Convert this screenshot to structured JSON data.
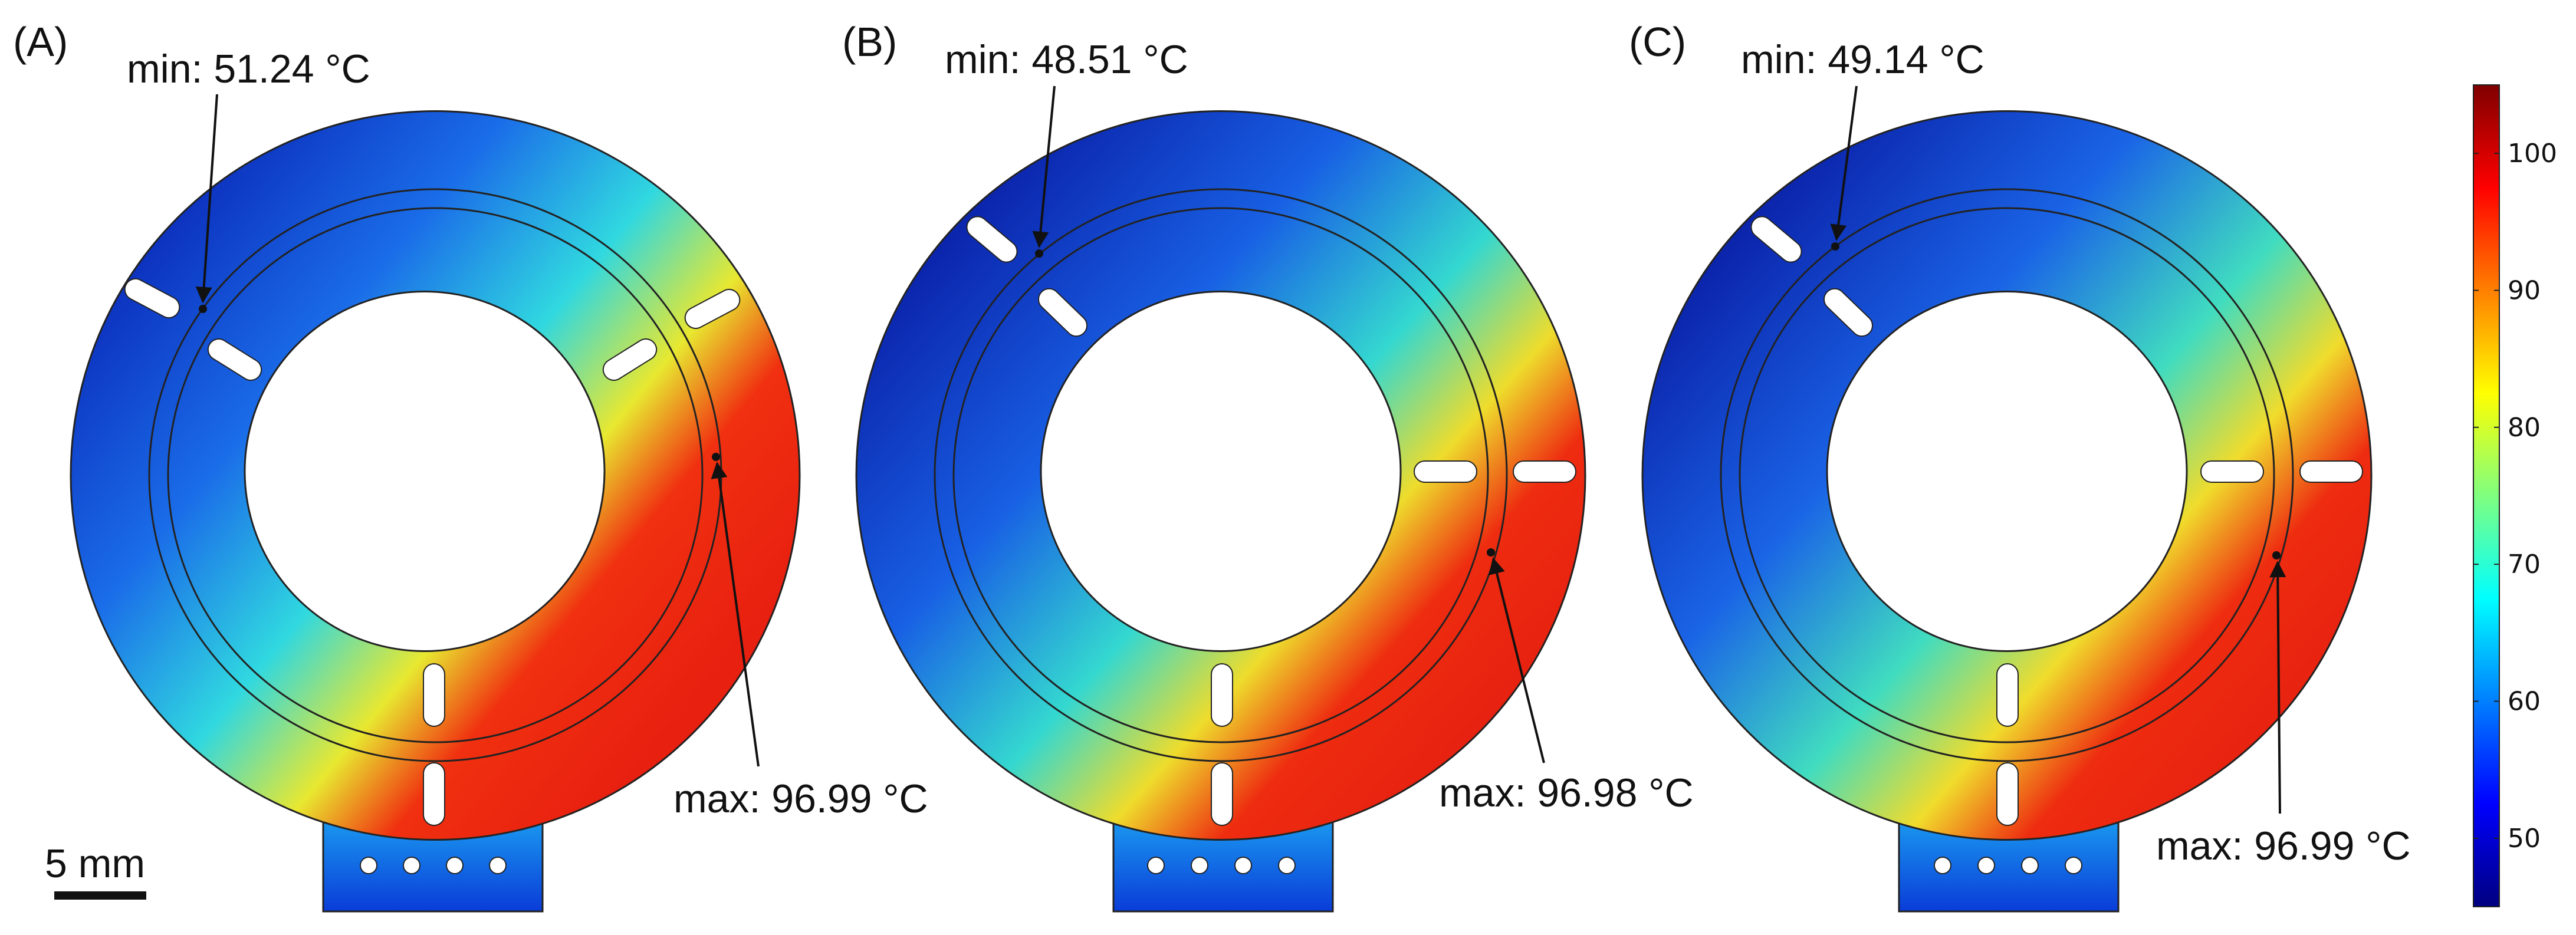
{
  "panels": [
    {
      "label": "(A)",
      "min_label": "min: 51.24 °C",
      "max_label": "max: 96.99 °C"
    },
    {
      "label": "(B)",
      "min_label": "min: 48.51 °C",
      "max_label": "max: 96.98 °C"
    },
    {
      "label": "(C)",
      "min_label": "min: 49.14 °C",
      "max_label": "max: 96.99 °C"
    }
  ],
  "scale_bar": {
    "label": "5 mm"
  },
  "colorbar": {
    "range": [
      45,
      105
    ],
    "ticks": [
      "50",
      "60",
      "70",
      "80",
      "90",
      "100"
    ],
    "colormap": [
      "#00007f",
      "#0000ff",
      "#00ffff",
      "#ffff00",
      "#ff0000",
      "#7f0000"
    ]
  },
  "colors": {
    "cold": "#0a32c8",
    "mid": "#34dcc0",
    "warm": "#f0e830",
    "hot": "#ea2a10"
  }
}
